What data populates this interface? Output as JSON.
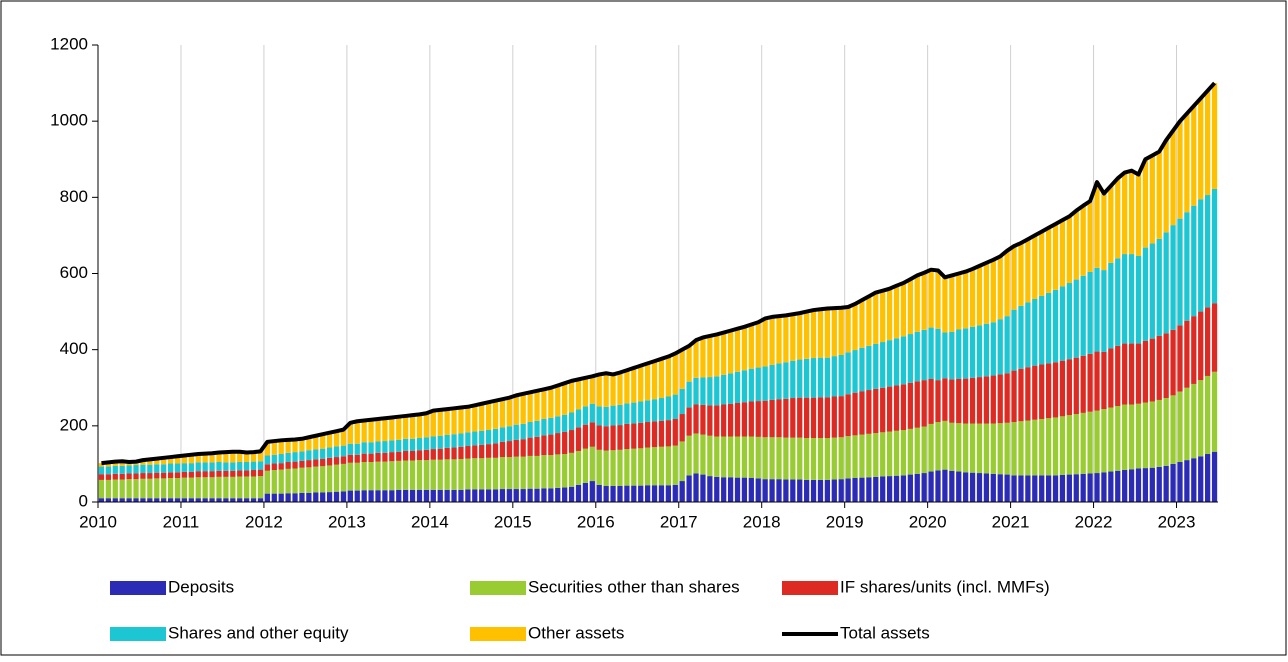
{
  "chart_data": {
    "type": "bar",
    "stacked": true,
    "categories": [
      "2010",
      null,
      null,
      null,
      null,
      null,
      null,
      null,
      null,
      null,
      null,
      null,
      "2011",
      null,
      null,
      null,
      null,
      null,
      null,
      null,
      null,
      null,
      null,
      null,
      "2012",
      null,
      null,
      null,
      null,
      null,
      null,
      null,
      null,
      null,
      null,
      null,
      "2013",
      null,
      null,
      null,
      null,
      null,
      null,
      null,
      null,
      null,
      null,
      null,
      "2014",
      null,
      null,
      null,
      null,
      null,
      null,
      null,
      null,
      null,
      null,
      null,
      "2015",
      null,
      null,
      null,
      null,
      null,
      null,
      null,
      null,
      null,
      null,
      null,
      "2016",
      null,
      null,
      null,
      null,
      null,
      null,
      null,
      null,
      null,
      null,
      null,
      "2017",
      null,
      null,
      null,
      null,
      null,
      null,
      null,
      null,
      null,
      null,
      null,
      "2018",
      null,
      null,
      null,
      null,
      null,
      null,
      null,
      null,
      null,
      null,
      null,
      "2019",
      null,
      null,
      null,
      null,
      null,
      null,
      null,
      null,
      null,
      null,
      null,
      "2020",
      null,
      null,
      null,
      null,
      null,
      null,
      null,
      null,
      null,
      null,
      null,
      "2021",
      null,
      null,
      null,
      null,
      null,
      null,
      null,
      null,
      null,
      null,
      null,
      "2022",
      null,
      null,
      null,
      null,
      null,
      null,
      null,
      null,
      null,
      null,
      null,
      "2023",
      null,
      null,
      null,
      null,
      null
    ],
    "series": [
      {
        "name": "Deposits",
        "color": "#2b2bb5",
        "values": [
          10,
          10,
          10,
          10,
          10,
          10,
          10,
          10,
          10,
          10,
          10,
          10,
          10,
          10,
          10,
          10,
          10,
          10,
          10,
          10,
          10,
          10,
          10,
          10,
          22,
          22,
          22,
          23,
          23,
          24,
          24,
          25,
          25,
          26,
          27,
          28,
          30,
          30,
          31,
          31,
          31,
          31,
          31,
          32,
          32,
          32,
          32,
          32,
          32,
          32,
          32,
          32,
          32,
          33,
          33,
          33,
          33,
          33,
          34,
          34,
          34,
          34,
          35,
          35,
          36,
          36,
          37,
          38,
          40,
          45,
          50,
          55,
          45,
          42,
          42,
          42,
          43,
          43,
          43,
          44,
          44,
          44,
          44,
          45,
          55,
          70,
          75,
          72,
          68,
          66,
          65,
          65,
          64,
          64,
          63,
          62,
          60,
          60,
          60,
          59,
          59,
          59,
          58,
          58,
          58,
          58,
          59,
          60,
          62,
          63,
          64,
          65,
          66,
          67,
          68,
          69,
          70,
          72,
          74,
          76,
          80,
          83,
          85,
          82,
          80,
          78,
          77,
          76,
          75,
          74,
          73,
          72,
          70,
          70,
          70,
          70,
          70,
          70,
          70,
          71,
          72,
          73,
          74,
          75,
          76,
          78,
          80,
          82,
          84,
          86,
          88,
          89,
          90,
          92,
          95,
          100,
          105,
          110,
          115,
          120,
          126,
          132
        ]
      },
      {
        "name": "Securities other than shares",
        "color": "#99cc33",
        "values": [
          48,
          48,
          49,
          49,
          50,
          50,
          51,
          51,
          52,
          52,
          53,
          53,
          54,
          54,
          55,
          55,
          55,
          56,
          56,
          56,
          57,
          57,
          57,
          58,
          60,
          62,
          63,
          64,
          65,
          66,
          67,
          68,
          69,
          70,
          71,
          72,
          73,
          73,
          74,
          74,
          75,
          75,
          76,
          76,
          77,
          77,
          78,
          78,
          79,
          79,
          80,
          80,
          81,
          81,
          82,
          82,
          83,
          83,
          84,
          84,
          85,
          85,
          86,
          86,
          87,
          87,
          88,
          88,
          89,
          89,
          90,
          90,
          92,
          93,
          94,
          95,
          96,
          97,
          98,
          99,
          100,
          101,
          102,
          103,
          104,
          104,
          105,
          105,
          106,
          106,
          107,
          107,
          108,
          108,
          109,
          109,
          110,
          110,
          110,
          110,
          110,
          110,
          110,
          110,
          110,
          110,
          110,
          110,
          111,
          112,
          113,
          114,
          115,
          116,
          117,
          118,
          119,
          120,
          121,
          122,
          125,
          127,
          128,
          126,
          127,
          128,
          129,
          130,
          131,
          132,
          134,
          136,
          140,
          142,
          144,
          146,
          148,
          150,
          152,
          154,
          156,
          158,
          160,
          162,
          164,
          166,
          168,
          170,
          172,
          170,
          170,
          172,
          174,
          176,
          178,
          180,
          185,
          190,
          195,
          200,
          205,
          210
        ]
      },
      {
        "name": "IF shares/units (incl. MMFs)",
        "color": "#dd2a22",
        "values": [
          15,
          15,
          15,
          15,
          15,
          15,
          15,
          15,
          15,
          15,
          15,
          15,
          15,
          15,
          16,
          16,
          16,
          16,
          16,
          16,
          16,
          16,
          17,
          17,
          17,
          17,
          17,
          18,
          18,
          18,
          19,
          19,
          19,
          20,
          20,
          20,
          21,
          21,
          22,
          22,
          23,
          23,
          24,
          24,
          25,
          25,
          26,
          27,
          28,
          29,
          30,
          31,
          32,
          33,
          34,
          35,
          36,
          38,
          40,
          42,
          44,
          46,
          48,
          50,
          52,
          54,
          56,
          58,
          60,
          62,
          63,
          64,
          64,
          64,
          65,
          65,
          66,
          66,
          67,
          67,
          68,
          68,
          69,
          70,
          72,
          74,
          76,
          78,
          80,
          82,
          84,
          86,
          88,
          90,
          92,
          94,
          96,
          98,
          100,
          102,
          104,
          105,
          106,
          106,
          107,
          107,
          108,
          108,
          110,
          112,
          114,
          115,
          116,
          117,
          118,
          119,
          120,
          121,
          122,
          122,
          118,
          110,
          112,
          114,
          116,
          118,
          120,
          122,
          124,
          126,
          128,
          130,
          135,
          138,
          140,
          142,
          143,
          144,
          145,
          146,
          147,
          148,
          150,
          152,
          155,
          150,
          155,
          158,
          160,
          160,
          158,
          162,
          165,
          168,
          170,
          172,
          174,
          176,
          178,
          180,
          180,
          180
        ]
      },
      {
        "name": "Shares and other equity",
        "color": "#1cc6d2",
        "values": [
          20,
          20,
          21,
          21,
          21,
          22,
          22,
          22,
          22,
          22,
          23,
          23,
          23,
          23,
          23,
          23,
          23,
          23,
          22,
          22,
          22,
          22,
          22,
          22,
          23,
          23,
          24,
          24,
          25,
          25,
          26,
          26,
          27,
          27,
          28,
          28,
          29,
          29,
          30,
          30,
          30,
          31,
          31,
          31,
          32,
          32,
          32,
          33,
          33,
          34,
          34,
          35,
          35,
          36,
          36,
          37,
          37,
          38,
          38,
          39,
          40,
          40,
          41,
          42,
          43,
          44,
          44,
          45,
          46,
          47,
          48,
          49,
          50,
          51,
          52,
          53,
          54,
          55,
          56,
          57,
          58,
          60,
          62,
          64,
          66,
          68,
          70,
          72,
          74,
          76,
          78,
          80,
          82,
          84,
          86,
          88,
          90,
          92,
          94,
          96,
          98,
          100,
          102,
          104,
          104,
          104,
          106,
          108,
          110,
          112,
          114,
          116,
          118,
          120,
          122,
          124,
          126,
          128,
          130,
          132,
          135,
          135,
          120,
          125,
          130,
          132,
          134,
          136,
          138,
          140,
          145,
          150,
          160,
          165,
          170,
          175,
          180,
          185,
          190,
          195,
          200,
          205,
          210,
          215,
          220,
          215,
          225,
          230,
          235,
          235,
          230,
          245,
          250,
          255,
          265,
          275,
          280,
          285,
          290,
          295,
          295,
          300
        ]
      },
      {
        "name": "Other assets",
        "color": "#ffc000",
        "values": [
          9,
          11,
          11,
          12,
          9,
          9,
          12,
          14,
          15,
          17,
          17,
          19,
          20,
          22,
          22,
          23,
          24,
          25,
          27,
          28,
          27,
          25,
          25,
          26,
          36,
          36,
          36,
          34,
          33,
          33,
          34,
          36,
          38,
          39,
          40,
          42,
          55,
          59,
          57,
          59,
          59,
          60,
          60,
          61,
          60,
          62,
          62,
          63,
          68,
          68,
          68,
          68,
          68,
          67,
          69,
          71,
          73,
          74,
          74,
          75,
          77,
          79,
          78,
          79,
          78,
          79,
          81,
          83,
          83,
          79,
          75,
          72,
          84,
          88,
          82,
          85,
          87,
          91,
          94,
          97,
          100,
          103,
          105,
          108,
          103,
          94,
          99,
          105,
          108,
          110,
          111,
          112,
          113,
          114,
          116,
          119,
          126,
          126,
          124,
          123,
          122,
          122,
          124,
          126,
          127,
          129,
          126,
          124,
          119,
          121,
          125,
          130,
          135,
          135,
          135,
          138,
          140,
          144,
          148,
          150,
          152,
          153,
          145,
          148,
          147,
          149,
          152,
          156,
          160,
          164,
          165,
          172,
          167,
          165,
          166,
          167,
          169,
          171,
          173,
          174,
          175,
          181,
          184,
          186,
          225,
          201,
          202,
          210,
          214,
          219,
          214,
          232,
          231,
          229,
          242,
          248,
          256,
          259,
          262,
          265,
          274,
          278
        ]
      },
      {
        "name": "Total assets",
        "type": "line",
        "color": "#000000",
        "values": [
          102,
          104,
          106,
          107,
          105,
          106,
          110,
          112,
          114,
          116,
          118,
          120,
          122,
          124,
          126,
          127,
          128,
          130,
          131,
          132,
          132,
          130,
          131,
          133,
          158,
          160,
          162,
          163,
          164,
          166,
          170,
          174,
          178,
          182,
          186,
          190,
          208,
          212,
          214,
          216,
          218,
          220,
          222,
          224,
          226,
          228,
          230,
          233,
          240,
          242,
          244,
          246,
          248,
          250,
          254,
          258,
          262,
          266,
          270,
          274,
          280,
          284,
          288,
          292,
          296,
          300,
          306,
          312,
          318,
          322,
          326,
          330,
          335,
          338,
          335,
          340,
          346,
          352,
          358,
          364,
          370,
          376,
          382,
          390,
          400,
          410,
          425,
          432,
          436,
          440,
          445,
          450,
          455,
          460,
          466,
          472,
          482,
          486,
          488,
          490,
          493,
          496,
          500,
          504,
          506,
          508,
          509,
          510,
          512,
          520,
          530,
          540,
          550,
          555,
          560,
          568,
          575,
          585,
          595,
          602,
          610,
          608,
          590,
          595,
          600,
          605,
          612,
          620,
          628,
          636,
          645,
          660,
          672,
          680,
          690,
          700,
          710,
          720,
          730,
          740,
          750,
          765,
          778,
          790,
          840,
          810,
          830,
          850,
          865,
          870,
          860,
          900,
          910,
          920,
          950,
          975,
          1000,
          1020,
          1040,
          1060,
          1080,
          1100
        ]
      }
    ],
    "ylim": [
      0,
      1200
    ],
    "yticks": [
      0,
      200,
      400,
      600,
      800,
      1000,
      1200
    ],
    "grid": true,
    "legend": "bottom"
  }
}
